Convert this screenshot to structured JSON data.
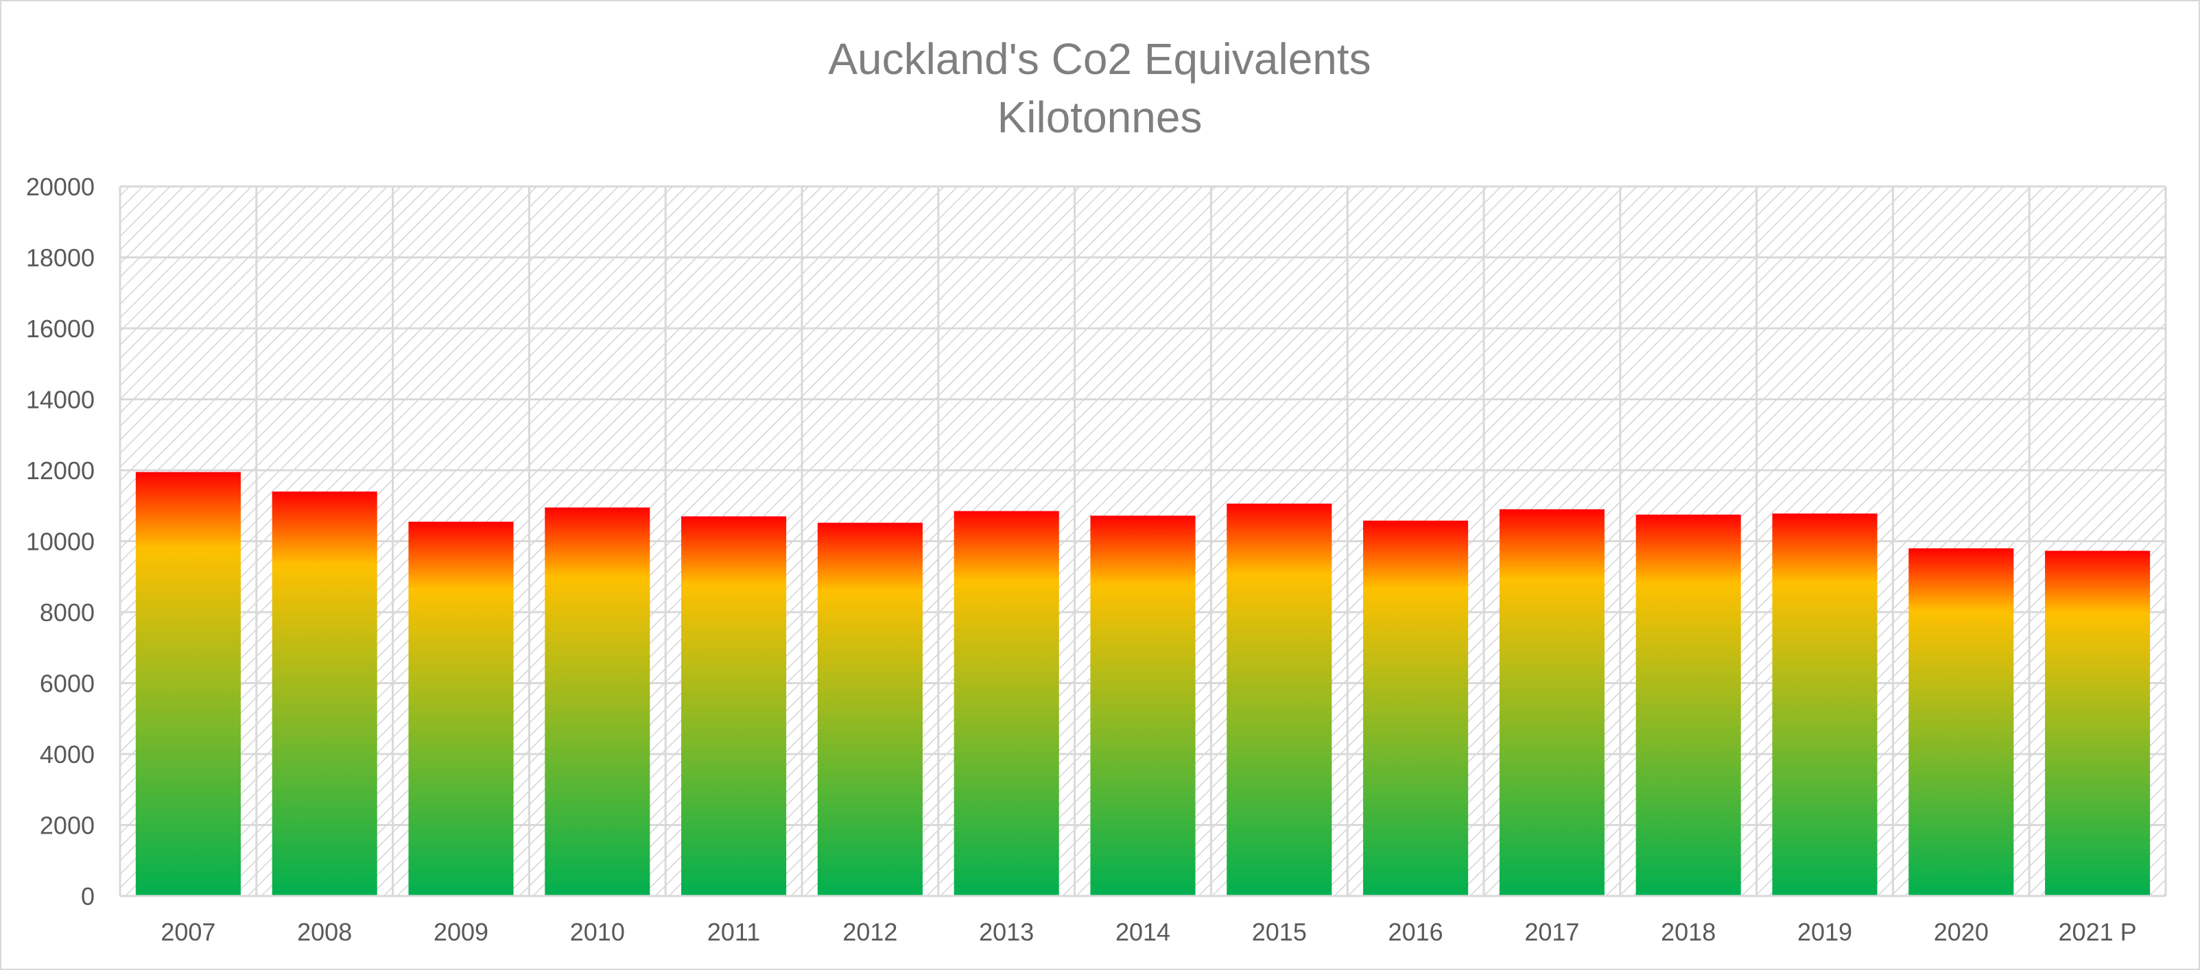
{
  "chart_data": {
    "type": "bar",
    "title": "Auckland's Co2 Equivalents",
    "subtitle": "Kilotonnes",
    "xlabel": "",
    "ylabel": "",
    "categories": [
      "2007",
      "2008",
      "2009",
      "2010",
      "2011",
      "2012",
      "2013",
      "2014",
      "2015",
      "2016",
      "2017",
      "2018",
      "2019",
      "2020",
      "2021 P"
    ],
    "values": [
      11950,
      11400,
      10550,
      10950,
      10700,
      10520,
      10850,
      10720,
      11060,
      10580,
      10900,
      10750,
      10780,
      9800,
      9730
    ],
    "ylim": [
      0,
      20000
    ],
    "yticks": [
      0,
      2000,
      4000,
      6000,
      8000,
      10000,
      12000,
      14000,
      16000,
      18000,
      20000
    ],
    "grid": true,
    "legend": "none",
    "colors": {
      "bar_bottom": "#00b050",
      "bar_mid": "#ffc000",
      "bar_top": "#ff0000",
      "grid": "#d9d9d9",
      "hatch": "#d0d0d0",
      "title": "#7f7f7f",
      "tick_label": "#595959"
    }
  }
}
